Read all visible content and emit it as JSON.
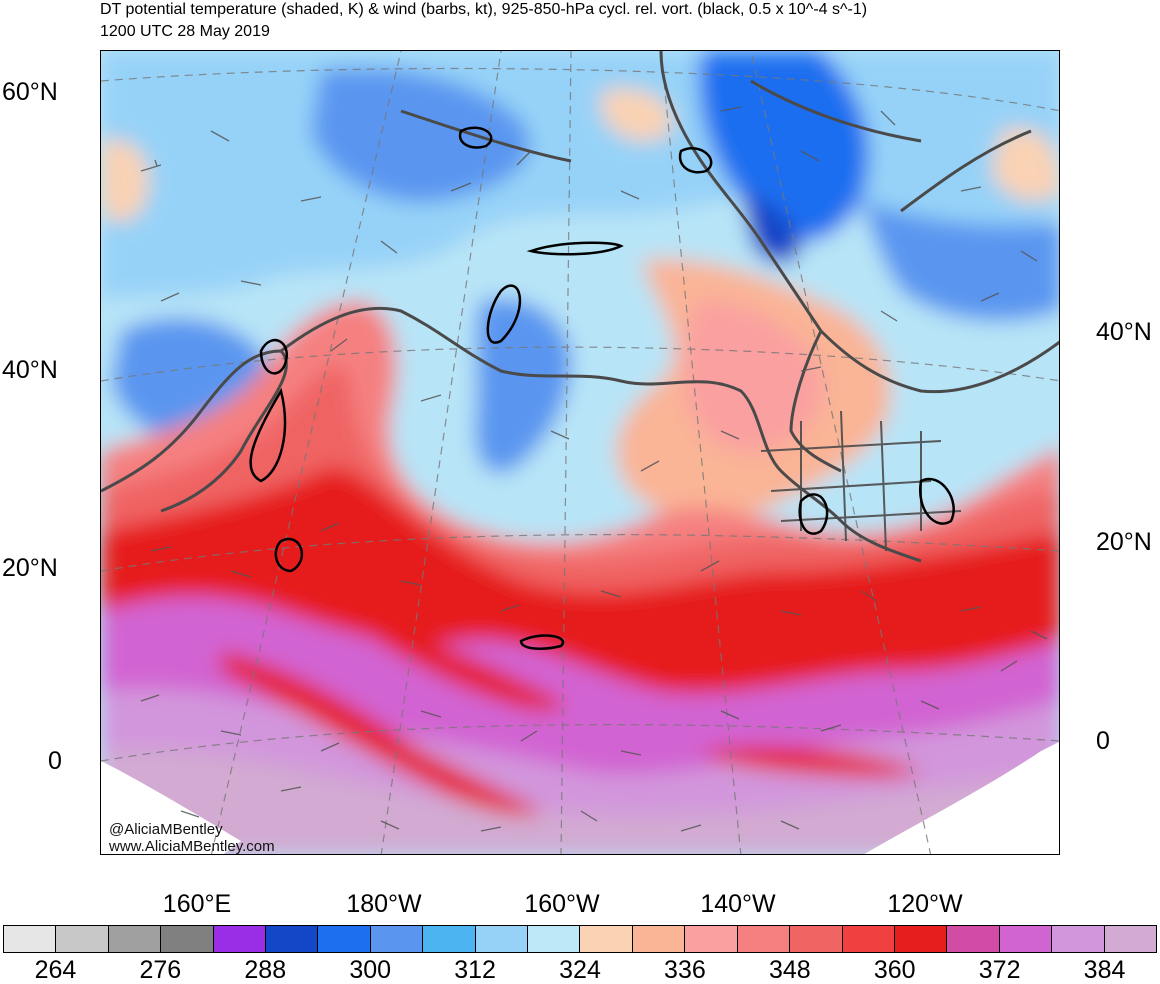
{
  "title": "DT potential temperature (shaded, K) & wind (barbs, kt), 925-850-hPa cycl. rel. vort. (black, 0.5 x 10^-4 s^-1)",
  "subtitle": "1200 UTC 28 May 2019",
  "map": {
    "lat_labels_left": [
      "60°N",
      "40°N",
      "20°N",
      "0"
    ],
    "lat_labels_right": [
      "40°N",
      "20°N",
      "0"
    ],
    "lon_labels": [
      "160°E",
      "180°W",
      "160°W",
      "140°W",
      "120°W"
    ],
    "credit_handle": "@AliciaMBentley",
    "credit_url": "www.AliciaMBentley.com"
  },
  "colorbar": {
    "colors": [
      "#e6e6e6",
      "#c8c8c8",
      "#a0a0a0",
      "#808080",
      "#9a2ee6",
      "#1446c8",
      "#1e6ef0",
      "#5a96f0",
      "#4cb4f0",
      "#96d2f8",
      "#bce8f8",
      "#fad2b4",
      "#fab496",
      "#faa0a0",
      "#f58080",
      "#f06464",
      "#f04040",
      "#e61e1e",
      "#d24ba5",
      "#d264d2",
      "#d296dc",
      "#d2aad2"
    ],
    "labels": [
      "264",
      "276",
      "288",
      "300",
      "312",
      "324",
      "336",
      "348",
      "360",
      "372",
      "384"
    ]
  }
}
